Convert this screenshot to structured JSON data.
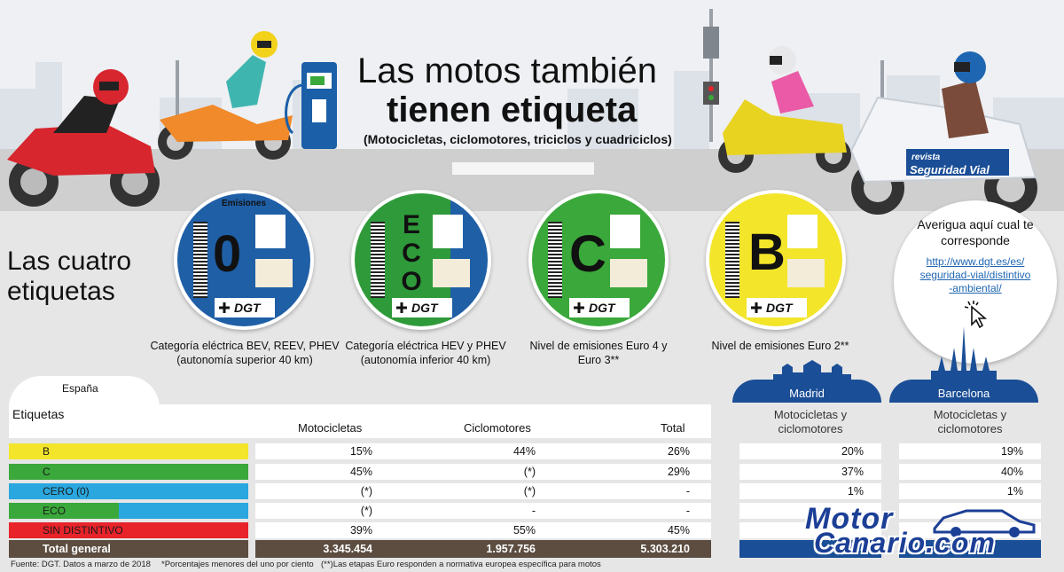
{
  "header": {
    "title_line1": "Las motos también",
    "title_line2": "tienen etiqueta",
    "subtitle": "(Motocicletas, ciclomotores, triciclos y cuadriciclos)"
  },
  "section_title": "Las cuatro etiquetas",
  "stickers": [
    {
      "symbol": "0",
      "top_label": "Emisiones",
      "code": "16M0-00000000",
      "logo": "DGT",
      "color": "#1f5fa6",
      "caption": "Categoría eléctrica BEV, REEV, PHEV (autonomía superior 40 km)"
    },
    {
      "symbol": "ECO",
      "code": "16TE-00000000",
      "logo": "DGT",
      "color": "#2f9a3a",
      "accent": "#1f5fa6",
      "caption": "Categoría eléctrica HEV y PHEV (autonomía inferior 40 km)"
    },
    {
      "symbol": "C",
      "code": "16MC-00000000",
      "logo": "DGT",
      "color": "#3aa83a",
      "caption": "Nivel de emisiones Euro 4 y Euro 3**"
    },
    {
      "symbol": "B",
      "code": "16MB-00000000",
      "logo": "DGT",
      "color": "#f2e52a",
      "caption": "Nivel de emisiones Euro 2**"
    }
  ],
  "info": {
    "title": "Averigua aquí cual te corresponde",
    "link": "http://www.dgt.es/es/seguridad-vial/distintivo-ambiental/",
    "link_lines": [
      "http://www.dgt.es/es/",
      "seguridad-vial/distintivo",
      "-ambiental/"
    ],
    "icon": "pointer-click-icon"
  },
  "brand": {
    "small": "revista",
    "big": "Seguridad Vial"
  },
  "table": {
    "region": "España",
    "label_header": "Etiquetas",
    "columns": [
      "Motocicletas",
      "Ciclomotores",
      "Total"
    ],
    "rows": [
      {
        "label": "B",
        "color": "#f2e52a",
        "motocicletas": "15%",
        "ciclomotores": "44%",
        "total": "26%",
        "madrid": "20%",
        "barcelona": "19%"
      },
      {
        "label": "C",
        "color": "#3aa83a",
        "motocicletas": "45%",
        "ciclomotores": "(*)",
        "total": "29%",
        "madrid": "37%",
        "barcelona": "40%"
      },
      {
        "label": "CERO (0)",
        "color": "#2aa7df",
        "motocicletas": "(*)",
        "ciclomotores": "(*)",
        "total": "-",
        "madrid": "1%",
        "barcelona": "1%"
      },
      {
        "label": "ECO",
        "color": "#3aa83a",
        "accent": "#2aa7df",
        "motocicletas": "(*)",
        "ciclomotores": "-",
        "total": "-",
        "madrid": "",
        "barcelona": ""
      },
      {
        "label": "SIN DISTINTIVO",
        "color": "#e8232a",
        "motocicletas": "39%",
        "ciclomotores": "55%",
        "total": "45%",
        "madrid": "",
        "barcelona": ""
      }
    ],
    "total": {
      "label": "Total general",
      "motocicletas": "3.345.454",
      "ciclomotores": "1.957.756",
      "total": "5.303.210"
    }
  },
  "cities": [
    {
      "name": "Madrid",
      "subtitle": "Motocicletas y ciclomotores"
    },
    {
      "name": "Barcelona",
      "subtitle": "Motocicletas y ciclomotores"
    }
  ],
  "footnotes": [
    "Fuente: DGT. Datos a marzo de 2018",
    "*Porcentajes menores del uno por ciento",
    "(**)Las etapas Euro responden a normativa europea específica para motos"
  ],
  "watermark": {
    "line1": "Motor",
    "line2": "Canario.com"
  },
  "colors": {
    "dark_blue": "#1a4e96",
    "total_brown": "#5c4d40",
    "background": "#e6e6e6"
  }
}
